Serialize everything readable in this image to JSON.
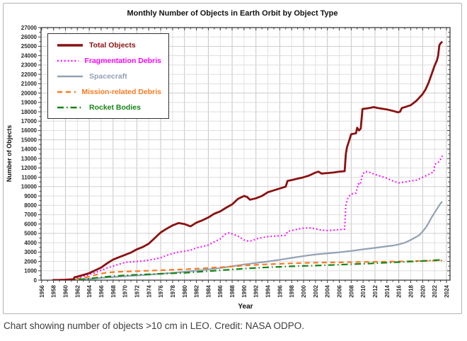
{
  "page": {
    "caption": "Chart showing number of objects >10 cm in LEO. Credit: NASA ODPO."
  },
  "chart_data": {
    "type": "line",
    "title": "Monthly Number of Objects in Earth Orbit by Object Type",
    "xlabel": "Year",
    "ylabel": "Number of Objects",
    "xlim": [
      1955.9,
      2024.6
    ],
    "ylim": [
      0,
      27000
    ],
    "grid": "on",
    "legend_position": "top-left-inside",
    "axes": {
      "x": {
        "tick_start": 1956,
        "tick_end": 2024,
        "tick_step": 2,
        "minor_step": 1
      },
      "y": {
        "tick_step": 1000,
        "minor_step": 500
      }
    },
    "colors": {
      "grid_light": "#e2e2e2",
      "grid_dark": "#c6c6c6",
      "h_grid": "#dedede",
      "h_grid_dark": "#cfcfcf",
      "axis": "#3c3c3c",
      "tick_label": "#2b2b2b"
    },
    "series": [
      {
        "name": "Spacecraft",
        "color": "#93a1b5",
        "style": "solid",
        "width": 2.2,
        "points": [
          [
            1957.8,
            1
          ],
          [
            1960,
            15
          ],
          [
            1962,
            60
          ],
          [
            1964,
            130
          ],
          [
            1966,
            240
          ],
          [
            1968,
            330
          ],
          [
            1970,
            420
          ],
          [
            1972,
            500
          ],
          [
            1974,
            580
          ],
          [
            1976,
            680
          ],
          [
            1978,
            780
          ],
          [
            1980,
            890
          ],
          [
            1982,
            1020
          ],
          [
            1984,
            1150
          ],
          [
            1986,
            1300
          ],
          [
            1988,
            1480
          ],
          [
            1990,
            1680
          ],
          [
            1992,
            1840
          ],
          [
            1994,
            2000
          ],
          [
            1996,
            2180
          ],
          [
            1998,
            2380
          ],
          [
            2000,
            2580
          ],
          [
            2002,
            2750
          ],
          [
            2004,
            2870
          ],
          [
            2006,
            2980
          ],
          [
            2008,
            3120
          ],
          [
            2010,
            3300
          ],
          [
            2012,
            3450
          ],
          [
            2014,
            3620
          ],
          [
            2015,
            3700
          ],
          [
            2016,
            3820
          ],
          [
            2017,
            4000
          ],
          [
            2018,
            4300
          ],
          [
            2019,
            4650
          ],
          [
            2019.5,
            4850
          ],
          [
            2020,
            5200
          ],
          [
            2020.5,
            5600
          ],
          [
            2021,
            6100
          ],
          [
            2021.5,
            6700
          ],
          [
            2022,
            7200
          ],
          [
            2022.5,
            7700
          ],
          [
            2022.8,
            8000
          ],
          [
            2023,
            8200
          ],
          [
            2023.3,
            8400
          ]
        ]
      },
      {
        "name": "Mission-related Debris",
        "color": "#f87a20",
        "style": "dashed",
        "width": 2.2,
        "points": [
          [
            1959,
            0
          ],
          [
            1960,
            30
          ],
          [
            1961,
            60
          ],
          [
            1962,
            130
          ],
          [
            1963,
            250
          ],
          [
            1964,
            380
          ],
          [
            1965,
            550
          ],
          [
            1966,
            700
          ],
          [
            1967,
            800
          ],
          [
            1968,
            860
          ],
          [
            1970,
            920
          ],
          [
            1972,
            960
          ],
          [
            1974,
            1010
          ],
          [
            1976,
            1060
          ],
          [
            1978,
            1110
          ],
          [
            1980,
            1160
          ],
          [
            1982,
            1230
          ],
          [
            1984,
            1300
          ],
          [
            1986,
            1380
          ],
          [
            1988,
            1460
          ],
          [
            1990,
            1560
          ],
          [
            1992,
            1630
          ],
          [
            1994,
            1700
          ],
          [
            1996,
            1750
          ],
          [
            1998,
            1800
          ],
          [
            2000,
            1840
          ],
          [
            2002,
            1870
          ],
          [
            2004,
            1890
          ],
          [
            2006,
            1900
          ],
          [
            2008,
            1920
          ],
          [
            2010,
            1940
          ],
          [
            2012,
            1960
          ],
          [
            2014,
            1980
          ],
          [
            2016,
            2000
          ],
          [
            2018,
            2030
          ],
          [
            2020,
            2060
          ],
          [
            2022,
            2090
          ],
          [
            2023.3,
            2100
          ]
        ]
      },
      {
        "name": "Rocket Bodies",
        "color": "#148414",
        "style": "dashdot",
        "width": 2.2,
        "points": [
          [
            1957.8,
            1
          ],
          [
            1960,
            15
          ],
          [
            1962,
            70
          ],
          [
            1964,
            160
          ],
          [
            1966,
            320
          ],
          [
            1968,
            420
          ],
          [
            1970,
            520
          ],
          [
            1972,
            580
          ],
          [
            1974,
            630
          ],
          [
            1976,
            680
          ],
          [
            1978,
            730
          ],
          [
            1980,
            780
          ],
          [
            1982,
            870
          ],
          [
            1984,
            960
          ],
          [
            1986,
            1050
          ],
          [
            1988,
            1140
          ],
          [
            1990,
            1230
          ],
          [
            1992,
            1310
          ],
          [
            1994,
            1380
          ],
          [
            1996,
            1430
          ],
          [
            1998,
            1480
          ],
          [
            2000,
            1520
          ],
          [
            2002,
            1560
          ],
          [
            2004,
            1600
          ],
          [
            2006,
            1650
          ],
          [
            2008,
            1700
          ],
          [
            2010,
            1750
          ],
          [
            2012,
            1810
          ],
          [
            2014,
            1870
          ],
          [
            2016,
            1930
          ],
          [
            2018,
            1990
          ],
          [
            2020,
            2050
          ],
          [
            2021,
            2090
          ],
          [
            2022,
            2130
          ],
          [
            2023.3,
            2160
          ]
        ]
      },
      {
        "name": "Fragmentation Debris",
        "color": "#ff00ff",
        "style": "dotted",
        "width": 2.1,
        "points": [
          [
            1958,
            0
          ],
          [
            1960,
            5
          ],
          [
            1961.4,
            50
          ],
          [
            1961.5,
            210
          ],
          [
            1962,
            260
          ],
          [
            1963,
            400
          ],
          [
            1964,
            600
          ],
          [
            1965,
            800
          ],
          [
            1966,
            1050
          ],
          [
            1967,
            1300
          ],
          [
            1968,
            1500
          ],
          [
            1969,
            1700
          ],
          [
            1970,
            1900
          ],
          [
            1971,
            1950
          ],
          [
            1972,
            2000
          ],
          [
            1973,
            2050
          ],
          [
            1974,
            2150
          ],
          [
            1975,
            2250
          ],
          [
            1976,
            2400
          ],
          [
            1977,
            2650
          ],
          [
            1978,
            2850
          ],
          [
            1979,
            3000
          ],
          [
            1980,
            3100
          ],
          [
            1981,
            3200
          ],
          [
            1982,
            3450
          ],
          [
            1983,
            3600
          ],
          [
            1984,
            3750
          ],
          [
            1985,
            4100
          ],
          [
            1986,
            4400
          ],
          [
            1986.8,
            4900
          ],
          [
            1987.5,
            5050
          ],
          [
            1988,
            4950
          ],
          [
            1989,
            4700
          ],
          [
            1990,
            4300
          ],
          [
            1990.8,
            4150
          ],
          [
            1991.5,
            4250
          ],
          [
            1992,
            4400
          ],
          [
            1993,
            4550
          ],
          [
            1994,
            4650
          ],
          [
            1995,
            4700
          ],
          [
            1996,
            4750
          ],
          [
            1997,
            4800
          ],
          [
            1997.3,
            5200
          ],
          [
            1998,
            5300
          ],
          [
            1999,
            5450
          ],
          [
            2000,
            5550
          ],
          [
            2001,
            5600
          ],
          [
            2002,
            5500
          ],
          [
            2003,
            5350
          ],
          [
            2004,
            5300
          ],
          [
            2005,
            5350
          ],
          [
            2006,
            5400
          ],
          [
            2006.9,
            5450
          ],
          [
            2007.1,
            8000
          ],
          [
            2007.5,
            8900
          ],
          [
            2008,
            9200
          ],
          [
            2008.8,
            9300
          ],
          [
            2009.2,
            10300
          ],
          [
            2009.5,
            10200
          ],
          [
            2009.9,
            11300
          ],
          [
            2010.3,
            11600
          ],
          [
            2011,
            11550
          ],
          [
            2012,
            11300
          ],
          [
            2013,
            11100
          ],
          [
            2014,
            10900
          ],
          [
            2015,
            10600
          ],
          [
            2016,
            10400
          ],
          [
            2017,
            10500
          ],
          [
            2018,
            10600
          ],
          [
            2019,
            10700
          ],
          [
            2020,
            11000
          ],
          [
            2021,
            11300
          ],
          [
            2021.9,
            11600
          ],
          [
            2022,
            12300
          ],
          [
            2022.3,
            12500
          ],
          [
            2022.6,
            12600
          ],
          [
            2023,
            12900
          ],
          [
            2023.3,
            13300
          ]
        ]
      },
      {
        "name": "Total Objects",
        "color": "#8b1111",
        "style": "solid",
        "width": 2.8,
        "points": [
          [
            1957.8,
            0
          ],
          [
            1958,
            15
          ],
          [
            1959,
            25
          ],
          [
            1960,
            45
          ],
          [
            1961.4,
            100
          ],
          [
            1961.5,
            300
          ],
          [
            1962,
            380
          ],
          [
            1963,
            560
          ],
          [
            1964,
            750
          ],
          [
            1965,
            1050
          ],
          [
            1966,
            1350
          ],
          [
            1967,
            1800
          ],
          [
            1968,
            2200
          ],
          [
            1969,
            2450
          ],
          [
            1970,
            2700
          ],
          [
            1971,
            2950
          ],
          [
            1972,
            3300
          ],
          [
            1973,
            3550
          ],
          [
            1974,
            3900
          ],
          [
            1975,
            4500
          ],
          [
            1975.5,
            4800
          ],
          [
            1976,
            5100
          ],
          [
            1977,
            5500
          ],
          [
            1978,
            5850
          ],
          [
            1979,
            6100
          ],
          [
            1980,
            6000
          ],
          [
            1981,
            5750
          ],
          [
            1982,
            6150
          ],
          [
            1983,
            6400
          ],
          [
            1984,
            6700
          ],
          [
            1985,
            7100
          ],
          [
            1986,
            7350
          ],
          [
            1987,
            7750
          ],
          [
            1988,
            8100
          ],
          [
            1988.5,
            8400
          ],
          [
            1989,
            8700
          ],
          [
            1990,
            9000
          ],
          [
            1990.5,
            8900
          ],
          [
            1991,
            8600
          ],
          [
            1992,
            8750
          ],
          [
            1993,
            9000
          ],
          [
            1994,
            9400
          ],
          [
            1995,
            9600
          ],
          [
            1996,
            9800
          ],
          [
            1997,
            10000
          ],
          [
            1997.3,
            10600
          ],
          [
            1998,
            10700
          ],
          [
            1999,
            10850
          ],
          [
            2000,
            11000
          ],
          [
            2001,
            11200
          ],
          [
            2002,
            11500
          ],
          [
            2002.5,
            11600
          ],
          [
            2003,
            11400
          ],
          [
            2004,
            11450
          ],
          [
            2005,
            11500
          ],
          [
            2006,
            11600
          ],
          [
            2006.9,
            11650
          ],
          [
            2007.1,
            13500
          ],
          [
            2007.3,
            14200
          ],
          [
            2007.8,
            15200
          ],
          [
            2008,
            15600
          ],
          [
            2008.8,
            15700
          ],
          [
            2009,
            16300
          ],
          [
            2009.3,
            16000
          ],
          [
            2009.6,
            16200
          ],
          [
            2009.9,
            18300
          ],
          [
            2010.5,
            18350
          ],
          [
            2011,
            18400
          ],
          [
            2011.8,
            18500
          ],
          [
            2012.5,
            18400
          ],
          [
            2013,
            18350
          ],
          [
            2014,
            18250
          ],
          [
            2015,
            18100
          ],
          [
            2015.8,
            17950
          ],
          [
            2016.2,
            18000
          ],
          [
            2016.5,
            18400
          ],
          [
            2017,
            18500
          ],
          [
            2018,
            18700
          ],
          [
            2019,
            19200
          ],
          [
            2020,
            19900
          ],
          [
            2020.5,
            20400
          ],
          [
            2021,
            21100
          ],
          [
            2021.5,
            22000
          ],
          [
            2022,
            22900
          ],
          [
            2022.4,
            23500
          ],
          [
            2022.6,
            24000
          ],
          [
            2022.8,
            25100
          ],
          [
            2023,
            25300
          ],
          [
            2023.3,
            25500
          ]
        ]
      }
    ],
    "legend_order": [
      "Total Objects",
      "Fragmentation Debris",
      "Spacecraft",
      "Mission-related Debris",
      "Rocket Bodies"
    ]
  }
}
